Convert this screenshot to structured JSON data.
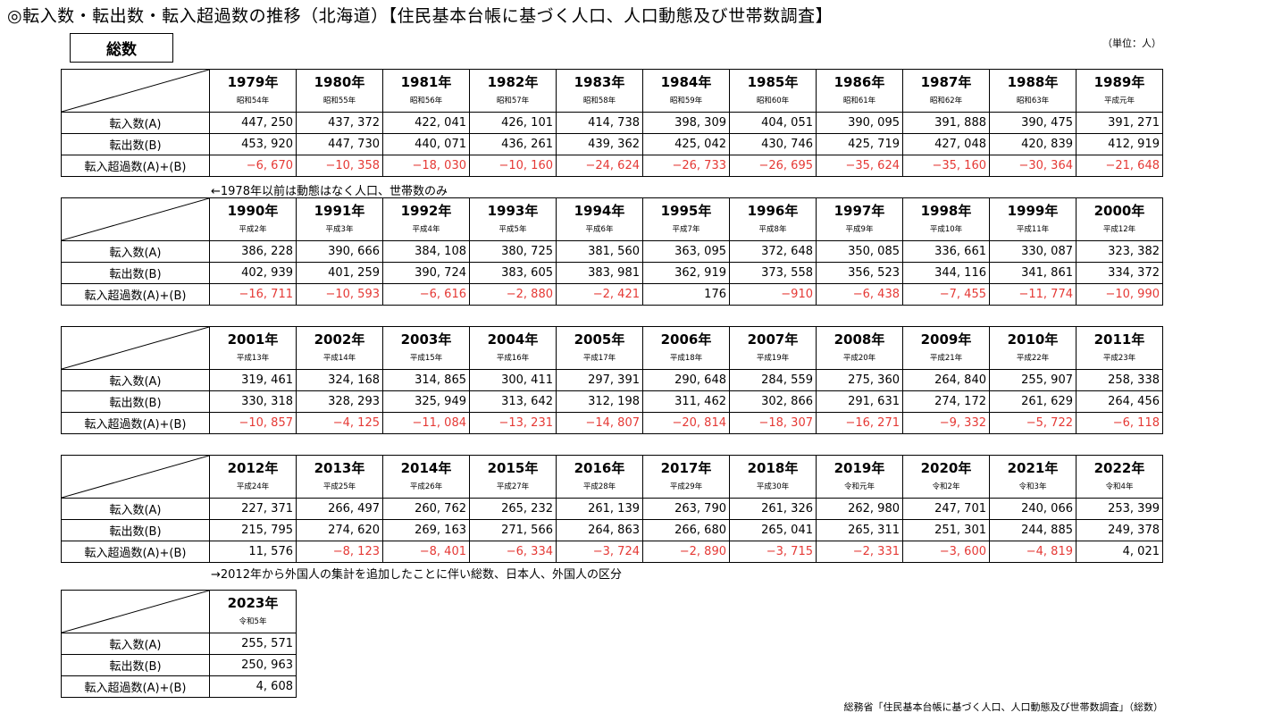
{
  "page": {
    "title": "◎転入数・転出数・転入超過数の推移（北海道）【住民基本台帳に基づく人口、人口動態及び世帯数調査】",
    "badge": "総数",
    "unit": "（単位：人）",
    "note1": "←1978年以前は動態はなく人口、世帯数のみ",
    "note2": "→2012年から外国人の集計を追加したことに伴い総数、日本人、外国人の区分",
    "source": "総務省「住民基本台帳に基づく人口、人口動態及び世帯数調査」（総数）",
    "row_labels": [
      "転入数(A)",
      "転出数(B)",
      "転入超過数(A)+(B)"
    ]
  },
  "blocks": [
    {
      "years": [
        "1979年",
        "1980年",
        "1981年",
        "1982年",
        "1983年",
        "1984年",
        "1985年",
        "1986年",
        "1987年",
        "1988年",
        "1989年"
      ],
      "eras": [
        "昭和54年",
        "昭和55年",
        "昭和56年",
        "昭和57年",
        "昭和58年",
        "昭和59年",
        "昭和60年",
        "昭和61年",
        "昭和62年",
        "昭和63年",
        "平成元年"
      ],
      "inflow": [
        "447, 250",
        "437, 372",
        "422, 041",
        "426, 101",
        "414, 738",
        "398, 309",
        "404, 051",
        "390, 095",
        "391, 888",
        "390, 475",
        "391, 271"
      ],
      "outflow": [
        "453, 920",
        "447, 730",
        "440, 071",
        "436, 261",
        "439, 362",
        "425, 042",
        "430, 746",
        "425, 719",
        "427, 048",
        "420, 839",
        "412, 919"
      ],
      "net": [
        "−6, 670",
        "−10, 358",
        "−18, 030",
        "−10, 160",
        "−24, 624",
        "−26, 733",
        "−26, 695",
        "−35, 624",
        "−35, 160",
        "−30, 364",
        "−21, 648"
      ]
    },
    {
      "years": [
        "1990年",
        "1991年",
        "1992年",
        "1993年",
        "1994年",
        "1995年",
        "1996年",
        "1997年",
        "1998年",
        "1999年",
        "2000年"
      ],
      "eras": [
        "平成2年",
        "平成3年",
        "平成4年",
        "平成5年",
        "平成6年",
        "平成7年",
        "平成8年",
        "平成9年",
        "平成10年",
        "平成11年",
        "平成12年"
      ],
      "inflow": [
        "386, 228",
        "390, 666",
        "384, 108",
        "380, 725",
        "381, 560",
        "363, 095",
        "372, 648",
        "350, 085",
        "336, 661",
        "330, 087",
        "323, 382"
      ],
      "outflow": [
        "402, 939",
        "401, 259",
        "390, 724",
        "383, 605",
        "383, 981",
        "362, 919",
        "373, 558",
        "356, 523",
        "344, 116",
        "341, 861",
        "334, 372"
      ],
      "net": [
        "−16, 711",
        "−10, 593",
        "−6, 616",
        "−2, 880",
        "−2, 421",
        "176",
        "−910",
        "−6, 438",
        "−7, 455",
        "−11, 774",
        "−10, 990"
      ]
    },
    {
      "years": [
        "2001年",
        "2002年",
        "2003年",
        "2004年",
        "2005年",
        "2006年",
        "2007年",
        "2008年",
        "2009年",
        "2010年",
        "2011年"
      ],
      "eras": [
        "平成13年",
        "平成14年",
        "平成15年",
        "平成16年",
        "平成17年",
        "平成18年",
        "平成19年",
        "平成20年",
        "平成21年",
        "平成22年",
        "平成23年"
      ],
      "inflow": [
        "319, 461",
        "324, 168",
        "314, 865",
        "300, 411",
        "297, 391",
        "290, 648",
        "284, 559",
        "275, 360",
        "264, 840",
        "255, 907",
        "258, 338"
      ],
      "outflow": [
        "330, 318",
        "328, 293",
        "325, 949",
        "313, 642",
        "312, 198",
        "311, 462",
        "302, 866",
        "291, 631",
        "274, 172",
        "261, 629",
        "264, 456"
      ],
      "net": [
        "−10, 857",
        "−4, 125",
        "−11, 084",
        "−13, 231",
        "−14, 807",
        "−20, 814",
        "−18, 307",
        "−16, 271",
        "−9, 332",
        "−5, 722",
        "−6, 118"
      ]
    },
    {
      "years": [
        "2012年",
        "2013年",
        "2014年",
        "2015年",
        "2016年",
        "2017年",
        "2018年",
        "2019年",
        "2020年",
        "2021年",
        "2022年"
      ],
      "eras": [
        "平成24年",
        "平成25年",
        "平成26年",
        "平成27年",
        "平成28年",
        "平成29年",
        "平成30年",
        "令和元年",
        "令和2年",
        "令和3年",
        "令和4年"
      ],
      "inflow": [
        "227, 371",
        "266, 497",
        "260, 762",
        "265, 232",
        "261, 139",
        "263, 790",
        "261, 326",
        "262, 980",
        "247, 701",
        "240, 066",
        "253, 399"
      ],
      "outflow": [
        "215, 795",
        "274, 620",
        "269, 163",
        "271, 566",
        "264, 863",
        "266, 680",
        "265, 041",
        "265, 311",
        "251, 301",
        "244, 885",
        "249, 378"
      ],
      "net": [
        "11, 576",
        "−8, 123",
        "−8, 401",
        "−6, 334",
        "−3, 724",
        "−2, 890",
        "−3, 715",
        "−2, 331",
        "−3, 600",
        "−4, 819",
        "4, 021"
      ]
    },
    {
      "years": [
        "2023年"
      ],
      "eras": [
        "令和5年"
      ],
      "inflow": [
        "255, 571"
      ],
      "outflow": [
        "250, 963"
      ],
      "net": [
        "4, 608"
      ]
    }
  ]
}
